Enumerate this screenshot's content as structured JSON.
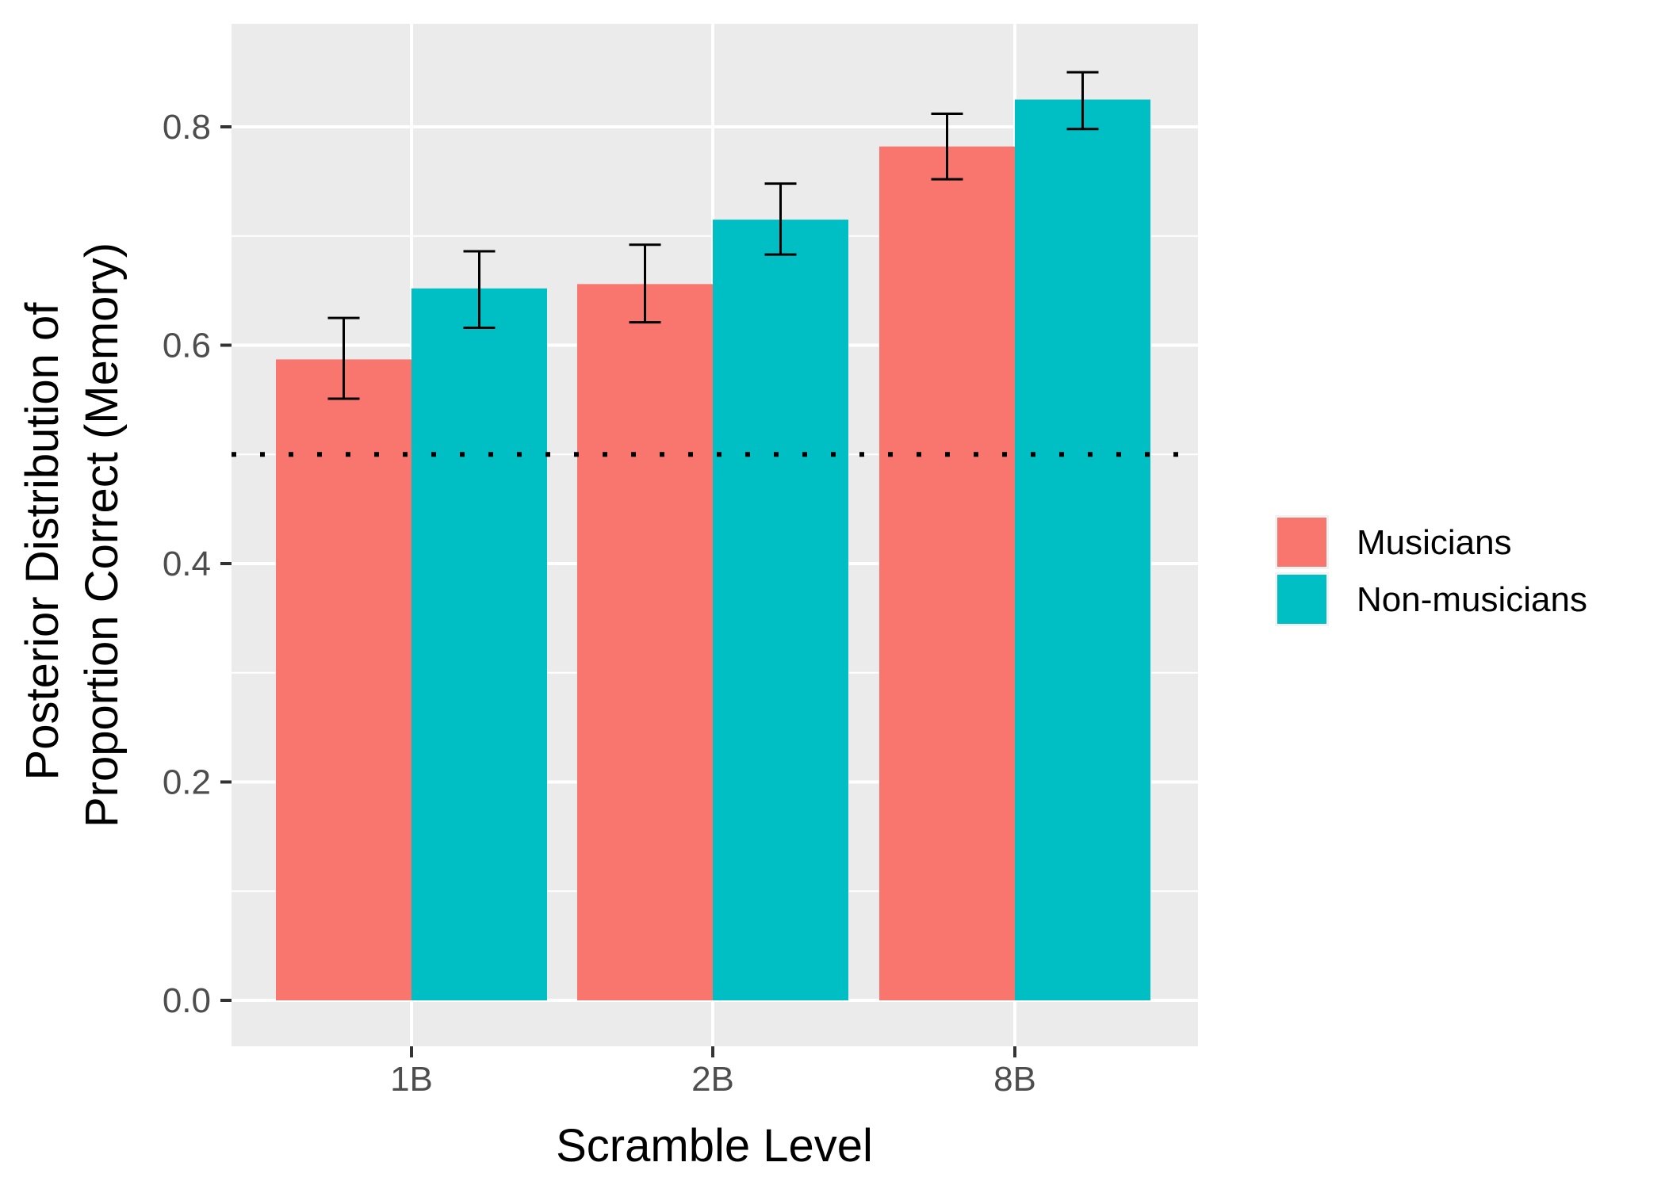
{
  "chart_data": {
    "type": "bar",
    "title": "",
    "xlabel": "Scramble Level",
    "ylabel_lines": [
      "Posterior Distribution of",
      "Proportion Correct (Memory)"
    ],
    "categories": [
      "1B",
      "2B",
      "8B"
    ],
    "ylim": [
      -0.0,
      0.89
    ],
    "y_ticks": [
      0.0,
      0.2,
      0.4,
      0.6,
      0.8
    ],
    "y_tick_labels": [
      "0.0",
      "0.2",
      "0.4",
      "0.6",
      "0.8"
    ],
    "reference_line": {
      "value": 0.5,
      "style": "dotted",
      "color": "#000000"
    },
    "grid": true,
    "legend_position": "right",
    "series": [
      {
        "name": "Musicians",
        "color": "#F8766D",
        "values": [
          0.587,
          0.656,
          0.782
        ],
        "error_low": [
          0.551,
          0.621,
          0.752
        ],
        "error_high": [
          0.625,
          0.692,
          0.812
        ]
      },
      {
        "name": "Non-musicians",
        "color": "#00BFC4",
        "values": [
          0.652,
          0.715,
          0.825
        ],
        "error_low": [
          0.616,
          0.683,
          0.798
        ],
        "error_high": [
          0.686,
          0.748,
          0.85
        ]
      }
    ]
  }
}
